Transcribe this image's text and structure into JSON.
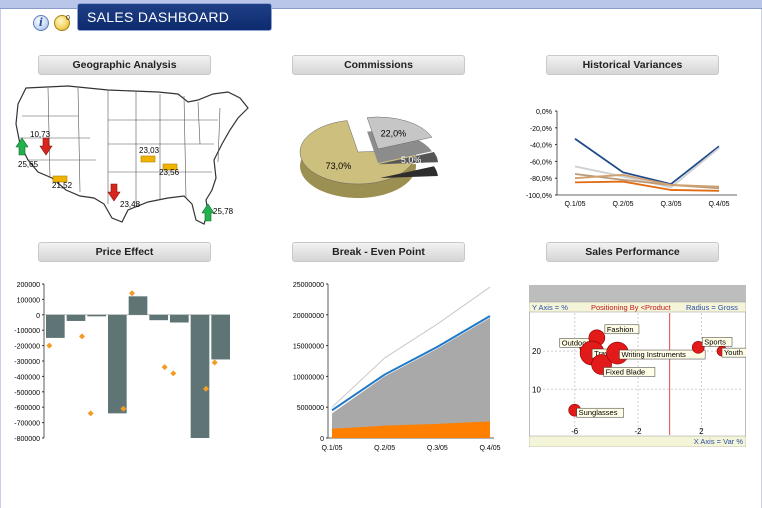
{
  "header": {
    "title": "SALES DASHBOARD",
    "info_icon": "info-icon",
    "hint_icon": "hint-icon",
    "hint_badge": "0"
  },
  "panels": {
    "geo": "Geographic Analysis",
    "commissions": "Commissions",
    "variances": "Historical Variances",
    "price": "Price Effect",
    "breakeven": "Break - Even Point",
    "performance": "Sales Performance"
  },
  "geo_map": {
    "markers": [
      {
        "label": "10,73",
        "direction": "down",
        "color": "#d9261c"
      },
      {
        "label": "25,65",
        "direction": "up",
        "color": "#22b14c"
      },
      {
        "label": "21,52",
        "direction": "flat",
        "color": "#f0b400"
      },
      {
        "label": "23,03",
        "direction": "flat",
        "color": "#f0b400"
      },
      {
        "label": "23,56",
        "direction": "flat",
        "color": "#f0b400"
      },
      {
        "label": "23,48",
        "direction": "down",
        "color": "#d9261c"
      },
      {
        "label": "25,78",
        "direction": "up",
        "color": "#22b14c"
      }
    ]
  },
  "chart_data": [
    {
      "type": "pie",
      "panel": "Commissions",
      "slices": [
        {
          "label": "73,0%",
          "value": 73.0,
          "color": "#cdbf7d"
        },
        {
          "label": "22,0%",
          "value": 22.0,
          "color": "#c6c6c6"
        },
        {
          "label": "5,0%",
          "value": 5.0,
          "color": "#555555"
        }
      ]
    },
    {
      "type": "line",
      "panel": "Historical Variances",
      "categories": [
        "Q.1/05",
        "Q.2/05",
        "Q.3/05",
        "Q.4/05"
      ],
      "yticks": [
        "0,0%",
        "-20,0%",
        "-40,0%",
        "-60,0%",
        "-80,0%",
        "-100,0%"
      ],
      "ylim": [
        -100,
        0
      ],
      "series": [
        {
          "values": [
            -33,
            -73,
            -87,
            -42
          ],
          "color": "#1f4a8a"
        },
        {
          "values": [
            -66,
            -78,
            -91,
            -44
          ],
          "color": "#d0d0d0"
        },
        {
          "values": [
            -85,
            -84,
            -94,
            -95
          ],
          "color": "#e06b12"
        },
        {
          "values": [
            -75,
            -82,
            -88,
            -92
          ],
          "color": "#b99a7a"
        },
        {
          "values": [
            -80,
            -76,
            -88,
            -90
          ],
          "color": "#cfa070"
        }
      ]
    },
    {
      "type": "bar",
      "panel": "Price Effect",
      "yticks": [
        "200000",
        "100000",
        "0",
        "-100000",
        "-200000",
        "-300000",
        "-400000",
        "-500000",
        "-600000",
        "-700000",
        "-800000"
      ],
      "ylim": [
        -800000,
        200000
      ],
      "values": [
        -150000,
        -40000,
        -10000,
        -640000,
        120000,
        -35000,
        -50000,
        -800000,
        -290000
      ],
      "markers": [
        -200000,
        -140000,
        -640000,
        -610000,
        140000,
        -340000,
        -380000,
        -480000,
        -310000
      ]
    },
    {
      "type": "area",
      "panel": "Break - Even Point",
      "categories": [
        "Q.1/05",
        "Q.2/05",
        "Q.3/05",
        "Q.4/05"
      ],
      "yticks": [
        "25000000",
        "20000000",
        "15000000",
        "10000000",
        "5000000",
        "0"
      ],
      "ylim": [
        0,
        25000000
      ],
      "series": [
        {
          "values": [
            1500000,
            2000000,
            2300000,
            2700000
          ],
          "color": "#ff7f00"
        },
        {
          "values": [
            4000000,
            10000000,
            14500000,
            19500000
          ],
          "color": "#a9a9a9"
        },
        {
          "values": [
            4500000,
            10300000,
            14800000,
            19800000
          ],
          "color": "#1f78c8"
        },
        {
          "values": [
            5000000,
            13000000,
            18500000,
            24500000
          ],
          "color": "#c9c9c9"
        }
      ]
    },
    {
      "type": "scatter",
      "panel": "Sales Performance",
      "header_left": "Y Axis = %",
      "header_mid": "Positioning By <Product",
      "header_right": "Radius = Gross",
      "footer": "X Axis = Var %",
      "xticks": [
        "-6",
        "-2",
        "2"
      ],
      "yticks": [
        "20",
        "10"
      ],
      "xlim": [
        -8,
        4.5
      ],
      "ylim": [
        -2,
        30
      ],
      "points": [
        {
          "label": "Outdoor",
          "x": -5.3,
          "y": 21,
          "r": 6
        },
        {
          "label": "Fashion",
          "x": -4.6,
          "y": 23.5,
          "r": 8
        },
        {
          "label": "Travel",
          "x": -4.9,
          "y": 19.5,
          "r": 12
        },
        {
          "label": "Fixed Blade",
          "x": -4.3,
          "y": 16.5,
          "r": 10
        },
        {
          "label": "Writing Instruments",
          "x": -3.3,
          "y": 19.5,
          "r": 11
        },
        {
          "label": "Sports",
          "x": 1.8,
          "y": 21,
          "r": 6
        },
        {
          "label": "Youth",
          "x": 3.3,
          "y": 20,
          "r": 5
        },
        {
          "label": "Sunglasses",
          "x": -6,
          "y": 4.5,
          "r": 6
        }
      ]
    }
  ]
}
